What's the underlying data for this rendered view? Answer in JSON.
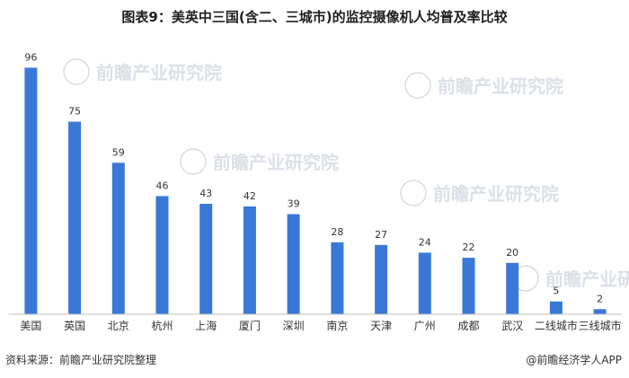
{
  "title": "图表9：美英中三国(含二、三城市)的监控摄像机人均普及率比较",
  "source": "资料来源：前瞻产业研究院整理",
  "brand": "@前瞻经济学人APP",
  "watermark": "前瞻产业研究院",
  "colors": {
    "bar": "#3a78d8",
    "axis": "#bfbfbf",
    "text": "#333333"
  },
  "chart_data": {
    "type": "bar",
    "title": "图表9：美英中三国(含二、三城市)的监控摄像机人均普及率比较",
    "categories": [
      "美国",
      "英国",
      "北京",
      "杭州",
      "上海",
      "厦门",
      "深圳",
      "南京",
      "天津",
      "广州",
      "成都",
      "武汉",
      "二线城市",
      "三线城市"
    ],
    "values": [
      96,
      75,
      59,
      46,
      43,
      42,
      39,
      28,
      27,
      24,
      22,
      20,
      5,
      2
    ],
    "xlabel": "",
    "ylabel": "",
    "ylim": [
      0,
      100
    ],
    "grid": false,
    "legend": "none",
    "data_labels": true
  }
}
